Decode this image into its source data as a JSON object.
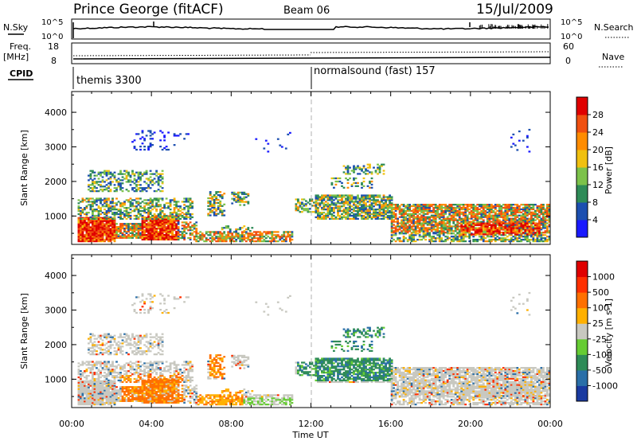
{
  "header": {
    "station": "Prince George (fitACF)",
    "beam": "Beam 06",
    "date": "15/Jul/2009"
  },
  "top_panels": {
    "nsky_label": "N.Sky",
    "nsky_ticks": [
      "10^5",
      "10^0"
    ],
    "nsearch_label": "N.Search",
    "nsearch_ticks": [
      "10^5",
      "10^0"
    ],
    "freq_label": "Freq.",
    "freq_unit": "[MHz]",
    "freq_ticks": [
      "18",
      "8"
    ],
    "nave_label": "Nave",
    "nave_ticks": [
      "60",
      "0"
    ],
    "cpid_label": "CPID",
    "cpid_segments": [
      {
        "name": "themis 3300",
        "start_hour": 0
      },
      {
        "name": "normalsound (fast) 157",
        "start_hour": 12
      }
    ]
  },
  "chart_data": [
    {
      "type": "heatmap",
      "name": "power",
      "ylabel": "Slant Range [km]",
      "xlabel": "",
      "ylim": [
        180,
        4600
      ],
      "yticks": [
        1000,
        2000,
        3000,
        4000
      ],
      "xlim_hours": [
        0,
        24
      ],
      "colorbar": {
        "label": "Power [dB]",
        "ticks": [
          "4",
          "8",
          "12",
          "16",
          "20",
          "24",
          "28"
        ],
        "colors": [
          "#1a1aff",
          "#1c4fb0",
          "#2e8b57",
          "#7cc24a",
          "#f0c010",
          "#ff8c00",
          "#f05010",
          "#e00000"
        ]
      }
    },
    {
      "type": "heatmap",
      "name": "velocity",
      "ylabel": "Slant Range [km]",
      "xlabel": "Time UT",
      "ylim": [
        180,
        4600
      ],
      "yticks": [
        1000,
        2000,
        3000,
        4000
      ],
      "xlim_hours": [
        0,
        24
      ],
      "xtick_labels": [
        "00:00",
        "04:00",
        "08:00",
        "12:00",
        "16:00",
        "20:00",
        "00:00"
      ],
      "colorbar": {
        "label": "Velocity [m s-1]",
        "ticks": [
          "1000",
          "500",
          "100",
          "25",
          "-25",
          "-100",
          "-500",
          "-1000"
        ],
        "colors": [
          "#1a3aa0",
          "#2a6fa8",
          "#2e8b57",
          "#66cc33",
          "#c8c8c0",
          "#ffb000",
          "#ff7000",
          "#ff3000",
          "#e00000"
        ]
      }
    }
  ],
  "colors": {
    "gridline": "#c0c0c0",
    "cpid_divider": "#b0b0b0"
  }
}
